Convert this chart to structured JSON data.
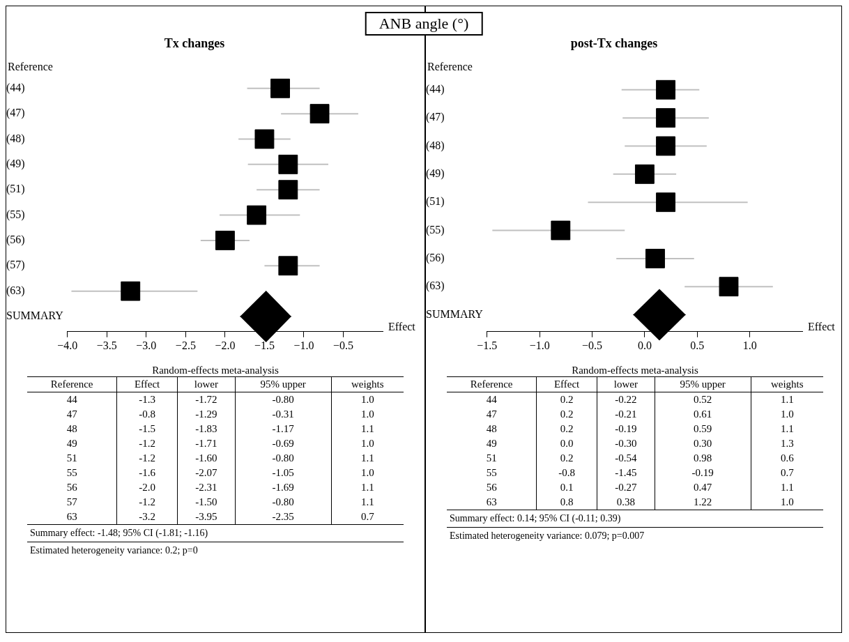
{
  "chart_data": [
    {
      "type": "scatter",
      "orientation": "horizontal",
      "title": "Tx changes",
      "ylabel": "Reference",
      "xlabel": "Effect",
      "categories": [
        "(44)",
        "(47)",
        "(48)",
        "(49)",
        "(51)",
        "(55)",
        "(56)",
        "(57)",
        "(63)",
        "SUMMARY"
      ],
      "series": [
        {
          "marker": "square",
          "color": "#000000",
          "values": [
            -1.3,
            -0.8,
            -1.5,
            -1.2,
            -1.2,
            -1.6,
            -2.0,
            -1.2,
            -3.2,
            null
          ],
          "errors": [
            [
              -1.72,
              -0.8
            ],
            [
              -1.29,
              -0.31
            ],
            [
              -1.83,
              -1.17
            ],
            [
              -1.71,
              -0.69
            ],
            [
              -1.6,
              -0.8
            ],
            [
              -2.07,
              -1.05
            ],
            [
              -2.31,
              -1.69
            ],
            [
              -1.5,
              -0.8
            ],
            [
              -3.95,
              -2.35
            ],
            null
          ]
        },
        {
          "marker": "diamond",
          "color": "#000000",
          "values": [
            null,
            null,
            null,
            null,
            null,
            null,
            null,
            null,
            null,
            -1.48
          ],
          "errors": [
            null,
            null,
            null,
            null,
            null,
            null,
            null,
            null,
            null,
            [
              -1.81,
              -1.16
            ]
          ]
        }
      ],
      "xlim": [
        -4.0,
        0
      ],
      "xticks": [
        {
          "value": -4,
          "label": "−4.0"
        },
        {
          "value": -3.5,
          "label": "−3.5"
        },
        {
          "value": -3,
          "label": "−3.0"
        },
        {
          "value": -2.5,
          "label": "−2.5"
        },
        {
          "value": -2,
          "label": "−2.0"
        },
        {
          "value": -1.5,
          "label": "−1.5"
        },
        {
          "value": -1,
          "label": "−1.0"
        },
        {
          "value": -0.5,
          "label": "−0.5"
        }
      ],
      "grid": false,
      "legend": false,
      "annotations": [
        "ANB angle (°)"
      ]
    },
    {
      "type": "other",
      "title": "Random-effects meta-analysis",
      "ylabel": "Reference",
      "categories": [
        "Effect",
        "lower",
        "95% upper",
        "weights"
      ],
      "y_categories": [
        "44",
        "47",
        "48",
        "49",
        "51",
        "55",
        "56",
        "57",
        "63"
      ],
      "cell_labels": [
        [
          "-1.3",
          "-1.72",
          "-0.80",
          "1.0"
        ],
        [
          "-0.8",
          "-1.29",
          "-0.31",
          "1.0"
        ],
        [
          "-1.5",
          "-1.83",
          "-1.17",
          "1.1"
        ],
        [
          "-1.2",
          "-1.71",
          "-0.69",
          "1.0"
        ],
        [
          "-1.2",
          "-1.60",
          "-0.80",
          "1.1"
        ],
        [
          "-1.6",
          "-2.07",
          "-1.05",
          "1.0"
        ],
        [
          "-2.0",
          "-2.31",
          "-1.69",
          "1.1"
        ],
        [
          "-1.2",
          "-1.50",
          "-0.80",
          "1.1"
        ],
        [
          "-3.2",
          "-3.95",
          "-2.35",
          "0.7"
        ]
      ],
      "annotations": [
        "Summary effect: -1.48; 95% CI (-1.81; -1.16)",
        "Estimated heterogeneity variance: 0.2; p=0"
      ]
    },
    {
      "type": "scatter",
      "orientation": "horizontal",
      "title": "post-Tx changes",
      "ylabel": "Reference",
      "xlabel": "Effect",
      "categories": [
        "(44)",
        "(47)",
        "(48)",
        "(49)",
        "(51)",
        "(55)",
        "(56)",
        "(63)",
        "SUMMARY"
      ],
      "series": [
        {
          "marker": "square",
          "color": "#000000",
          "values": [
            0.2,
            0.2,
            0.2,
            0.0,
            0.2,
            -0.8,
            0.1,
            0.8,
            null
          ],
          "errors": [
            [
              -0.22,
              0.52
            ],
            [
              -0.21,
              0.61
            ],
            [
              -0.19,
              0.59
            ],
            [
              -0.3,
              0.3
            ],
            [
              -0.54,
              0.98
            ],
            [
              -1.45,
              -0.19
            ],
            [
              -0.27,
              0.47
            ],
            [
              0.38,
              1.22
            ],
            null
          ]
        },
        {
          "marker": "diamond",
          "color": "#000000",
          "values": [
            null,
            null,
            null,
            null,
            null,
            null,
            null,
            null,
            0.14
          ],
          "errors": [
            null,
            null,
            null,
            null,
            null,
            null,
            null,
            null,
            [
              -0.11,
              0.39
            ]
          ]
        }
      ],
      "xlim": [
        -1.5,
        1.5
      ],
      "xticks": [
        {
          "value": -1.5,
          "label": "−1.5"
        },
        {
          "value": -1,
          "label": "−1.0"
        },
        {
          "value": -0.5,
          "label": "−0.5"
        },
        {
          "value": 0,
          "label": "0.0"
        },
        {
          "value": 0.5,
          "label": "0.5"
        },
        {
          "value": 1,
          "label": "1.0"
        }
      ],
      "grid": false,
      "legend": false
    },
    {
      "type": "other",
      "title": "Random-effects meta-analysis",
      "ylabel": "Reference",
      "categories": [
        "Effect",
        "lower",
        "95% upper",
        "weights"
      ],
      "y_categories": [
        "44",
        "47",
        "48",
        "49",
        "51",
        "55",
        "56",
        "63"
      ],
      "cell_labels": [
        [
          "0.2",
          "-0.22",
          "0.52",
          "1.1"
        ],
        [
          "0.2",
          "-0.21",
          "0.61",
          "1.0"
        ],
        [
          "0.2",
          "-0.19",
          "0.59",
          "1.1"
        ],
        [
          "0.0",
          "-0.30",
          "0.30",
          "1.3"
        ],
        [
          "0.2",
          "-0.54",
          "0.98",
          "0.6"
        ],
        [
          "-0.8",
          "-1.45",
          "-0.19",
          "0.7"
        ],
        [
          "0.1",
          "-0.27",
          "0.47",
          "1.1"
        ],
        [
          "0.8",
          "0.38",
          "1.22",
          "1.0"
        ]
      ],
      "annotations": [
        "Summary effect: 0.14; 95% CI (-0.11; 0.39)",
        "Estimated heterogeneity variance: 0.079; p=0.007"
      ]
    }
  ]
}
